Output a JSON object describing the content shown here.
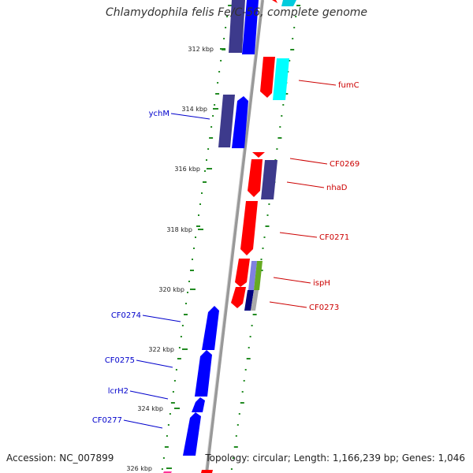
{
  "title": "Chlamydophila felis Fe/C-56, complete genome",
  "footer": {
    "accession": "Accession: NC_007899",
    "stats": "Topology: circular; Length: 1,166,239 bp; Genes: 1,046"
  },
  "colors": {
    "forward_gene": "#0000ff",
    "forward_gene_dark": "#3d3a8c",
    "reverse_gene": "#ff0000",
    "reverse_gene_cyan": "#00ffff",
    "forward_label": "#0000cc",
    "reverse_label": "#cc0000",
    "backbone": "#888888",
    "gc_skew": "#228b22"
  },
  "scale_labels": [
    "312 kbp",
    "314 kbp",
    "316 kbp",
    "318 kbp",
    "320 kbp",
    "322 kbp",
    "324 kbp",
    "326 kbp"
  ],
  "forward_genes": [
    {
      "name": "ychM",
      "color": "#0000ff"
    },
    {
      "name": "CF0274",
      "color": "#0000ff"
    },
    {
      "name": "CF0275",
      "color": "#0000ff"
    },
    {
      "name": "lcrH2",
      "color": "#0000ff"
    },
    {
      "name": "CF0277",
      "color": "#0000ff"
    }
  ],
  "reverse_genes": [
    {
      "name": "fumC",
      "color": "#ff0000"
    },
    {
      "name": "CF0269",
      "color": "#ff0000"
    },
    {
      "name": "nhaD",
      "color": "#ff0000"
    },
    {
      "name": "CF0271",
      "color": "#ff0000"
    },
    {
      "name": "ispH",
      "color": "#ff0000"
    },
    {
      "name": "CF0273",
      "color": "#ff0000"
    }
  ]
}
